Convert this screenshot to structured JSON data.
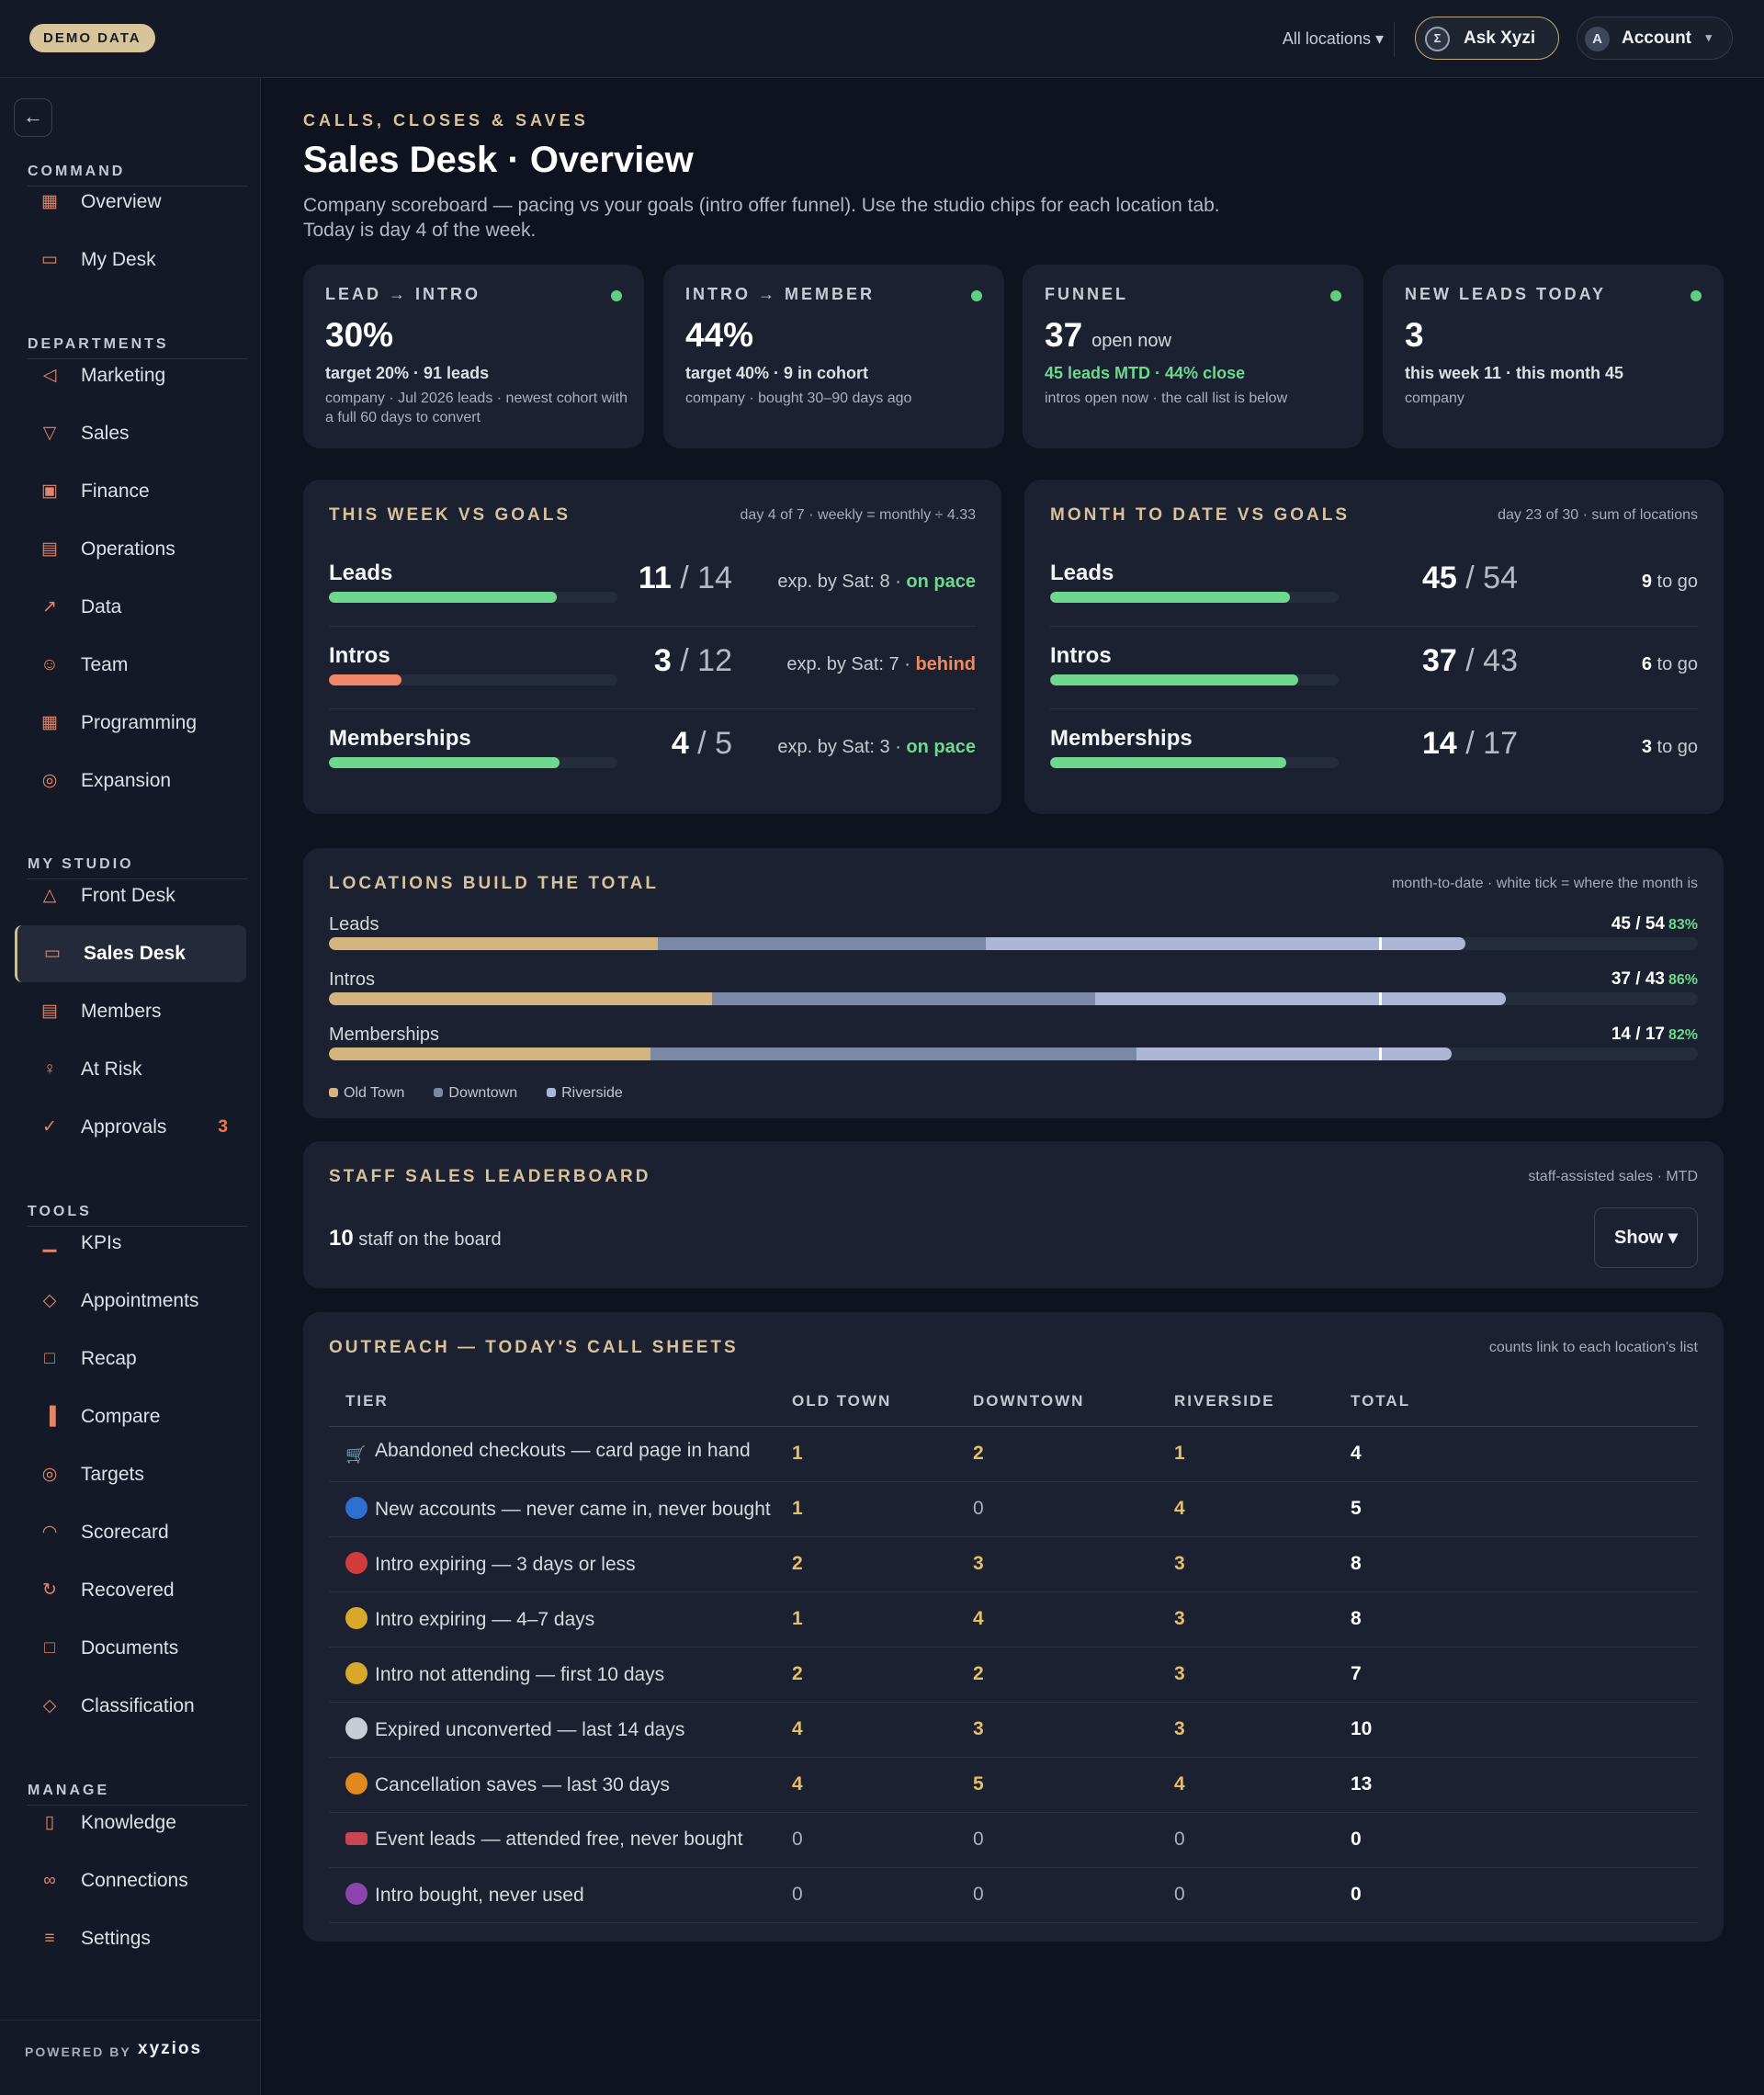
{
  "topbar": {
    "demo_badge": "DEMO DATA",
    "locations_label": "All locations ▾",
    "ask_label": "Ask Xyzi",
    "account_label": "Account",
    "account_avatar": "A"
  },
  "sidebar": {
    "sections": [
      {
        "title": "COMMAND",
        "items": [
          {
            "label": "Overview",
            "icon": "grid-icon"
          },
          {
            "label": "My Desk",
            "icon": "inbox-icon"
          }
        ]
      },
      {
        "title": "DEPARTMENTS",
        "items": [
          {
            "label": "Marketing",
            "icon": "megaphone-icon"
          },
          {
            "label": "Sales",
            "icon": "funnel-icon"
          },
          {
            "label": "Finance",
            "icon": "cash-icon"
          },
          {
            "label": "Operations",
            "icon": "clipboard-icon"
          },
          {
            "label": "Data",
            "icon": "line-chart-icon"
          },
          {
            "label": "Team",
            "icon": "users-icon"
          },
          {
            "label": "Programming",
            "icon": "calendar-icon"
          },
          {
            "label": "Expansion",
            "icon": "compass-icon"
          }
        ]
      },
      {
        "title": "MY STUDIO",
        "items": [
          {
            "label": "Front Desk",
            "icon": "bell-icon"
          },
          {
            "label": "Sales Desk",
            "icon": "chat-icon",
            "active": true
          },
          {
            "label": "Members",
            "icon": "id-card-icon"
          },
          {
            "label": "At Risk",
            "icon": "user-alert-icon"
          },
          {
            "label": "Approvals",
            "icon": "check-circle-icon",
            "badge": "3"
          }
        ]
      },
      {
        "title": "TOOLS",
        "items": [
          {
            "label": "KPIs",
            "icon": "bar-chart-icon"
          },
          {
            "label": "Appointments",
            "icon": "layers-icon"
          },
          {
            "label": "Recap",
            "icon": "report-icon"
          },
          {
            "label": "Compare",
            "icon": "columns-icon"
          },
          {
            "label": "Targets",
            "icon": "target-icon"
          },
          {
            "label": "Scorecard",
            "icon": "gauge-icon"
          },
          {
            "label": "Recovered",
            "icon": "recover-icon"
          },
          {
            "label": "Documents",
            "icon": "documents-icon"
          },
          {
            "label": "Classification",
            "icon": "tag-icon"
          }
        ]
      },
      {
        "title": "MANAGE",
        "items": [
          {
            "label": "Knowledge",
            "icon": "book-icon"
          },
          {
            "label": "Connections",
            "icon": "link-icon"
          },
          {
            "label": "Settings",
            "icon": "sliders-icon"
          }
        ]
      }
    ],
    "powered_by": "POWERED BY",
    "brand": "xyzios"
  },
  "header": {
    "kicker": "CALLS, CLOSES & SAVES",
    "title": "Sales Desk · Overview",
    "description": "Company scoreboard — pacing vs your goals (intro offer funnel). Use the studio chips for each location tab. Today is day 4 of the week."
  },
  "kpis": [
    {
      "label": "LEAD → INTRO",
      "value": "30%",
      "value_sub": "",
      "line1": "target 20% · 91 leads",
      "line1_green": false,
      "line2": "company · Jul 2026 leads · newest cohort with a full 60 days to convert"
    },
    {
      "label": "INTRO → MEMBER",
      "value": "44%",
      "value_sub": "",
      "line1": "target 40% · 9 in cohort",
      "line1_green": false,
      "line2": "company · bought 30–90 days ago"
    },
    {
      "label": "FUNNEL",
      "value": "37",
      "value_sub": "open now",
      "line1": "45 leads MTD · 44% close",
      "line1_green": true,
      "line2": "intros open now · the call list is below"
    },
    {
      "label": "NEW LEADS TODAY",
      "value": "3",
      "value_sub": "",
      "line1": "this week 11 · this month 45",
      "line1_green": false,
      "line2": "company"
    }
  ],
  "week": {
    "title": "THIS WEEK VS GOALS",
    "note": "day 4 of 7 · weekly = monthly ÷ 4.33",
    "rows": [
      {
        "name": "Leads",
        "actual": "11",
        "goal": "14",
        "progress": 0.79,
        "exp_text": "exp. by Sat: 8 · ",
        "status": "on pace",
        "status_kind": "ok"
      },
      {
        "name": "Intros",
        "actual": "3",
        "goal": "12",
        "progress": 0.25,
        "exp_text": "exp. by Sat: 7 · ",
        "status": "behind",
        "status_kind": "bad"
      },
      {
        "name": "Memberships",
        "actual": "4",
        "goal": "5",
        "progress": 0.8,
        "exp_text": "exp. by Sat: 3 · ",
        "status": "on pace",
        "status_kind": "ok"
      }
    ]
  },
  "month": {
    "title": "MONTH TO DATE VS GOALS",
    "note": "day 23 of 30 · sum of locations",
    "rows": [
      {
        "name": "Leads",
        "actual": "45",
        "goal": "54",
        "progress": 0.83,
        "togo_num": "9",
        "togo_text": " to go"
      },
      {
        "name": "Intros",
        "actual": "37",
        "goal": "43",
        "progress": 0.86,
        "togo_num": "6",
        "togo_text": " to go"
      },
      {
        "name": "Memberships",
        "actual": "14",
        "goal": "17",
        "progress": 0.82,
        "togo_num": "3",
        "togo_text": " to go"
      }
    ]
  },
  "locations": {
    "title": "LOCATIONS BUILD THE TOTAL",
    "note": "month-to-date · white tick = where the month is",
    "month_position": 0.767,
    "legend": [
      {
        "name": "Old Town",
        "color": "#d4b47f"
      },
      {
        "name": "Downtown",
        "color": "#7b89a6"
      },
      {
        "name": "Riverside",
        "color": "#aeb6d6"
      }
    ],
    "rows": [
      {
        "name": "Leads",
        "total": "45 / 54",
        "pct": "83%",
        "segments": [
          0.24,
          0.24,
          0.35
        ]
      },
      {
        "name": "Intros",
        "total": "37 / 43",
        "pct": "86%",
        "segments": [
          0.28,
          0.28,
          0.3
        ]
      },
      {
        "name": "Memberships",
        "total": "14 / 17",
        "pct": "82%",
        "segments": [
          0.235,
          0.355,
          0.23
        ]
      }
    ]
  },
  "leaderboard": {
    "title": "STAFF SALES LEADERBOARD",
    "note": "staff-assisted sales · MTD",
    "count": "10",
    "count_text": " staff on the board",
    "show_label": "Show ▾"
  },
  "outreach": {
    "title": "OUTREACH — TODAY'S CALL SHEETS",
    "note": "counts link to each location's list",
    "columns": [
      "TIER",
      "OLD TOWN",
      "DOWNTOWN",
      "RIVERSIDE",
      "TOTAL"
    ],
    "rows": [
      {
        "icon": "cart-icon",
        "icon_color": "#8a93a8",
        "tier": "Abandoned checkouts — card page in hand",
        "old_town": "1",
        "downtown": "2",
        "riverside": "1",
        "total": "4"
      },
      {
        "icon": "blue-circle-icon",
        "icon_color": "#2f6fd0",
        "tier": "New accounts — never came in, never bought",
        "old_town": "1",
        "downtown": "0",
        "riverside": "4",
        "total": "5"
      },
      {
        "icon": "red-circle-icon",
        "icon_color": "#d23b3b",
        "tier": "Intro expiring — 3 days or less",
        "old_town": "2",
        "downtown": "3",
        "riverside": "3",
        "total": "8"
      },
      {
        "icon": "yellow-circle-icon",
        "icon_color": "#d9a82a",
        "tier": "Intro expiring — 4–7 days",
        "old_town": "1",
        "downtown": "4",
        "riverside": "3",
        "total": "8"
      },
      {
        "icon": "yellow-circle-icon",
        "icon_color": "#d9a82a",
        "tier": "Intro not attending — first 10 days",
        "old_town": "2",
        "downtown": "2",
        "riverside": "3",
        "total": "7"
      },
      {
        "icon": "white-circle-icon",
        "icon_color": "#c8ccd4",
        "tier": "Expired unconverted — last 14 days",
        "old_town": "4",
        "downtown": "3",
        "riverside": "3",
        "total": "10"
      },
      {
        "icon": "orange-circle-icon",
        "icon_color": "#e08a1e",
        "tier": "Cancellation saves — last 30 days",
        "old_town": "4",
        "downtown": "5",
        "riverside": "4",
        "total": "13"
      },
      {
        "icon": "ticket-icon",
        "icon_color": "#c9454f",
        "tier": "Event leads — attended free, never bought",
        "old_town": "0",
        "downtown": "0",
        "riverside": "0",
        "total": "0"
      },
      {
        "icon": "purple-circle-icon",
        "icon_color": "#8e44ad",
        "tier": "Intro bought, never used",
        "old_town": "0",
        "downtown": "0",
        "riverside": "0",
        "total": "0"
      }
    ]
  }
}
